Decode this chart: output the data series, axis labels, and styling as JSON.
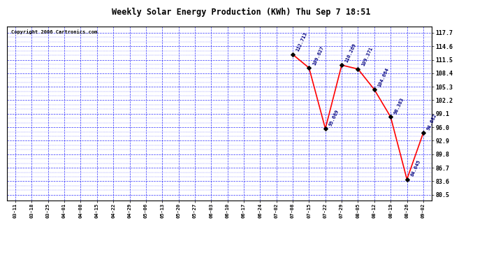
{
  "title": "Weekly Solar Energy Production (KWh) Thu Sep 7 18:51",
  "copyright": "Copyright 2006 Cartronics.com",
  "x_labels": [
    "03-11",
    "03-18",
    "03-25",
    "04-01",
    "04-08",
    "04-15",
    "04-22",
    "04-29",
    "05-06",
    "05-13",
    "05-20",
    "05-27",
    "06-03",
    "06-10",
    "06-17",
    "06-24",
    "07-02",
    "07-08",
    "07-15",
    "07-22",
    "07-29",
    "08-05",
    "08-12",
    "08-19",
    "08-26",
    "09-02"
  ],
  "data_points": {
    "07-08": 112.713,
    "07-15": 109.627,
    "07-22": 95.669,
    "07-29": 110.269,
    "08-05": 109.371,
    "08-12": 104.664,
    "08-19": 98.383,
    "08-26": 84.045,
    "09-02": 94.682
  },
  "y_ticks": [
    80.5,
    83.6,
    86.7,
    89.8,
    92.9,
    96.0,
    99.1,
    102.2,
    105.3,
    108.4,
    111.5,
    114.6,
    117.7
  ],
  "y_min": 79.2,
  "y_max": 119.2,
  "line_color": "red",
  "marker_color": "black",
  "grid_color": "blue",
  "bg_color": "white",
  "title_color": "black",
  "copyright_color": "black",
  "label_color": "navy"
}
